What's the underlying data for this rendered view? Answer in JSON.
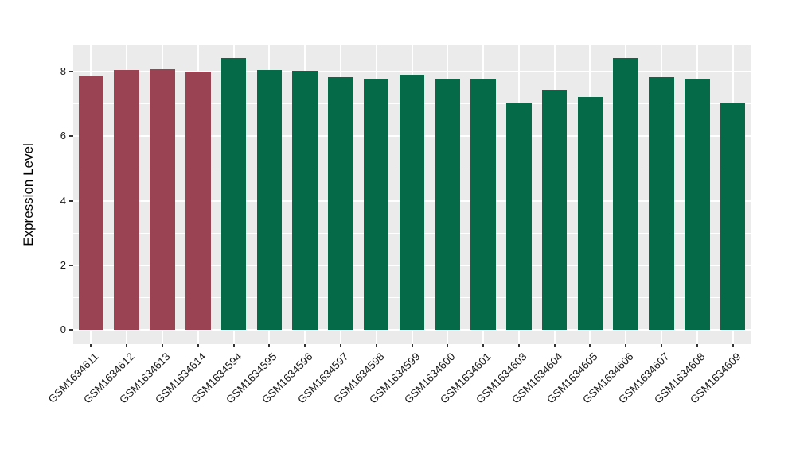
{
  "figure": {
    "background": "#FFFFFF",
    "panel_background": "#EBEBEB",
    "grid_color": "#FFFFFF",
    "axis_text_color": "#1A1A1A",
    "tick_color": "#333333"
  },
  "chart_data": {
    "type": "bar",
    "title": "",
    "xlabel": "",
    "ylabel": "Expression Level",
    "categories": [
      "GSM1634611",
      "GSM1634612",
      "GSM1634613",
      "GSM1634614",
      "GSM1634594",
      "GSM1634595",
      "GSM1634596",
      "GSM1634597",
      "GSM1634598",
      "GSM1634599",
      "GSM1634600",
      "GSM1634601",
      "GSM1634603",
      "GSM1634604",
      "GSM1634605",
      "GSM1634606",
      "GSM1634607",
      "GSM1634608",
      "GSM1634609"
    ],
    "values": [
      7.87,
      8.05,
      8.07,
      8.0,
      8.42,
      8.05,
      8.04,
      7.84,
      7.77,
      7.9,
      7.75,
      7.78,
      7.02,
      7.45,
      7.22,
      8.42,
      7.84,
      7.75,
      7.02
    ],
    "bar_colors": [
      "#9A4453",
      "#9A4453",
      "#9A4453",
      "#9A4453",
      "#046A47",
      "#046A47",
      "#046A47",
      "#046A47",
      "#046A47",
      "#046A47",
      "#046A47",
      "#046A47",
      "#046A47",
      "#046A47",
      "#046A47",
      "#046A47",
      "#046A47",
      "#046A47",
      "#046A47"
    ],
    "group_colors": {
      "group1": "#9A4453",
      "group2": "#046A47"
    },
    "group_split_index": 4,
    "yticks": [
      0,
      2,
      4,
      6,
      8
    ],
    "minor_yticks": [
      1,
      3,
      5,
      7
    ],
    "ylim": [
      -0.44,
      8.84
    ],
    "grid": true,
    "legend": "none"
  }
}
